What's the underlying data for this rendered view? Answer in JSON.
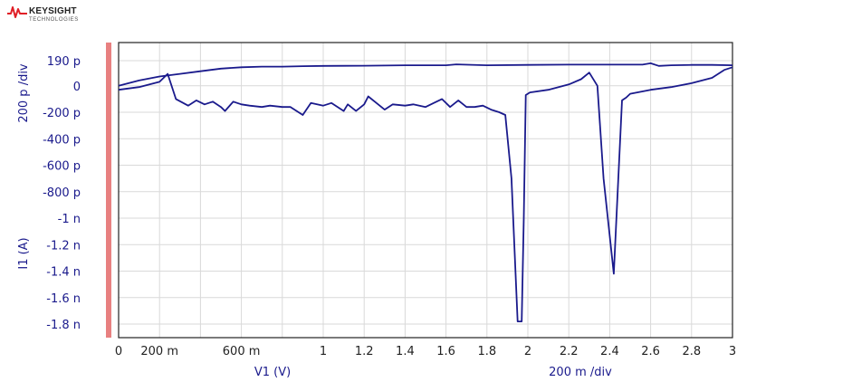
{
  "logo": {
    "brand": "KEYSIGHT",
    "tagline": "TECHNOLOGIES",
    "colors": {
      "wave": "#e01f26"
    }
  },
  "colors": {
    "trace": "#1a1a8c",
    "axis_text": "#1a1a8c",
    "grid": "#d9d9d9",
    "frame": "#222222",
    "marker_bar": "#e88080"
  },
  "chart_data": {
    "type": "line",
    "xlabel": "V1 (V)",
    "ylabel": "I1 (A)",
    "x_scale_label": "200 m /div",
    "y_scale_label": "200 p /div",
    "xlim": [
      0,
      3
    ],
    "ylim": [
      -1.8e-09,
      1.9e-10
    ],
    "grid": true,
    "x_ticks": [
      {
        "v": 0,
        "label": "0"
      },
      {
        "v": 0.2,
        "label": "200 m"
      },
      {
        "v": 0.6,
        "label": "600 m"
      },
      {
        "v": 1.0,
        "label": "1"
      },
      {
        "v": 1.2,
        "label": "1.2"
      },
      {
        "v": 1.4,
        "label": "1.4"
      },
      {
        "v": 1.6,
        "label": "1.6"
      },
      {
        "v": 1.8,
        "label": "1.8"
      },
      {
        "v": 2.0,
        "label": "2"
      },
      {
        "v": 2.2,
        "label": "2.2"
      },
      {
        "v": 2.4,
        "label": "2.4"
      },
      {
        "v": 2.6,
        "label": "2.6"
      },
      {
        "v": 2.8,
        "label": "2.8"
      },
      {
        "v": 3.0,
        "label": "3"
      }
    ],
    "y_ticks": [
      {
        "v": 1.9e-10,
        "label": "190 p"
      },
      {
        "v": 0,
        "label": "0"
      },
      {
        "v": -2e-10,
        "label": "-200 p"
      },
      {
        "v": -4e-10,
        "label": "-400 p"
      },
      {
        "v": -6e-10,
        "label": "-600 p"
      },
      {
        "v": -8e-10,
        "label": "-800 p"
      },
      {
        "v": -1e-09,
        "label": "-1 n"
      },
      {
        "v": -1.2e-09,
        "label": "-1.2 n"
      },
      {
        "v": -1.4e-09,
        "label": "-1.4 n"
      },
      {
        "v": -1.6e-09,
        "label": "-1.6 n"
      },
      {
        "v": -1.8e-09,
        "label": "-1.8 n"
      }
    ],
    "x_grid": [
      0,
      0.2,
      0.4,
      0.6,
      0.8,
      1.0,
      1.2,
      1.4,
      1.6,
      1.8,
      2.0,
      2.2,
      2.4,
      2.6,
      2.8,
      3.0
    ],
    "y_grid": [
      1.9e-10,
      0,
      -2e-10,
      -4e-10,
      -6e-10,
      -8e-10,
      -1e-09,
      -1.2e-09,
      -1.4e-09,
      -1.6e-09,
      -1.8e-09
    ],
    "series": [
      {
        "x": [
          0,
          0.1,
          0.2,
          0.24,
          0.28,
          0.34,
          0.38,
          0.42,
          0.46,
          0.5,
          0.52,
          0.56,
          0.6,
          0.64,
          0.7,
          0.74,
          0.8,
          0.84,
          0.9,
          0.94,
          1.0,
          1.04,
          1.1,
          1.12,
          1.16,
          1.2,
          1.22,
          1.26,
          1.3,
          1.34,
          1.4,
          1.44,
          1.5,
          1.54,
          1.58,
          1.62,
          1.66,
          1.7,
          1.74,
          1.78,
          1.82,
          1.86,
          1.89,
          1.92,
          1.95,
          1.97,
          1.98,
          1.99,
          2.01,
          2.1,
          2.2,
          2.26,
          2.3,
          2.34,
          2.37,
          2.42,
          2.46,
          2.47,
          2.48,
          2.5,
          2.6,
          2.7,
          2.8,
          2.9,
          2.96,
          3.0
        ],
        "y": [
          -3e-11,
          -1e-11,
          3e-11,
          9e-11,
          -1e-10,
          -1.5e-10,
          -1.1e-10,
          -1.4e-10,
          -1.2e-10,
          -1.6e-10,
          -1.9e-10,
          -1.2e-10,
          -1.4e-10,
          -1.5e-10,
          -1.6e-10,
          -1.5e-10,
          -1.6e-10,
          -1.6e-10,
          -2.2e-10,
          -1.3e-10,
          -1.5e-10,
          -1.3e-10,
          -1.9e-10,
          -1.4e-10,
          -1.9e-10,
          -1.4e-10,
          -8e-11,
          -1.3e-10,
          -1.8e-10,
          -1.4e-10,
          -1.5e-10,
          -1.4e-10,
          -1.6e-10,
          -1.3e-10,
          -1e-10,
          -1.6e-10,
          -1.1e-10,
          -1.6e-10,
          -1.6e-10,
          -1.5e-10,
          -1.8e-10,
          -2e-10,
          -2.2e-10,
          -7e-10,
          -1.78e-09,
          -1.78e-09,
          -1e-09,
          -7e-11,
          -5e-11,
          -3e-11,
          1e-11,
          5e-11,
          1e-10,
          0,
          -7e-10,
          -1.42e-09,
          -1.1e-10,
          -1e-10,
          -9e-11,
          -6e-11,
          -3e-11,
          -1e-11,
          2e-11,
          6e-11,
          1.2e-10,
          1.4e-10
        ]
      },
      {
        "x": [
          0,
          0.1,
          0.2,
          0.3,
          0.4,
          0.5,
          0.6,
          0.7,
          0.8,
          0.9,
          1.0,
          1.2,
          1.4,
          1.6,
          1.65,
          1.8,
          2.0,
          2.2,
          2.4,
          2.56,
          2.6,
          2.64,
          2.7,
          2.8,
          2.9,
          3.0
        ],
        "y": [
          0,
          4e-11,
          7e-11,
          9e-11,
          1.1e-10,
          1.3e-10,
          1.4e-10,
          1.45e-10,
          1.45e-10,
          1.48e-10,
          1.5e-10,
          1.52e-10,
          1.55e-10,
          1.55e-10,
          1.62e-10,
          1.55e-10,
          1.58e-10,
          1.6e-10,
          1.6e-10,
          1.6e-10,
          1.7e-10,
          1.5e-10,
          1.55e-10,
          1.58e-10,
          1.58e-10,
          1.55e-10
        ]
      }
    ]
  }
}
